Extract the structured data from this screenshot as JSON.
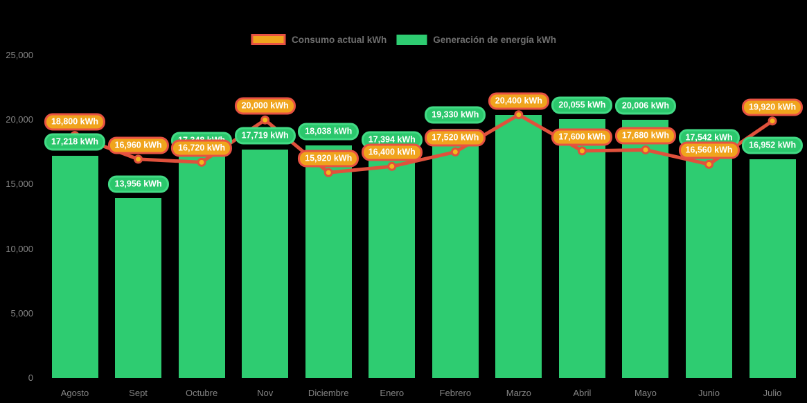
{
  "legend": {
    "items": [
      {
        "label": "Consumo actual kWh",
        "swatch": "consumo"
      },
      {
        "label": "Generación de energía kWh",
        "swatch": "generacion"
      }
    ]
  },
  "colors": {
    "background": "#000000",
    "bar_green": "#2ecc71",
    "green_label_fill": "#2bc76c",
    "green_label_border": "#42db85",
    "orange_label_fill": "#f0a41d",
    "orange_label_border": "#e85242",
    "line_red": "#e0513c",
    "marker_gold": "#f3b81d",
    "axis_text": "#858585",
    "legend_text": "#6f6f6f"
  },
  "chart_data": {
    "type": "bar",
    "title": "",
    "xlabel": "",
    "ylabel": "",
    "ylim": [
      0,
      25000
    ],
    "grid": false,
    "legend_position": "top",
    "y_tick_labels": [
      "25,000",
      "20,000",
      "15,000",
      "10,000",
      "5,000",
      "0"
    ],
    "categories": [
      "Agosto",
      "Sept",
      "Octubre",
      "Nov",
      "Diciembre",
      "Enero",
      "Febrero",
      "Marzo",
      "Abril",
      "Mayo",
      "Junio",
      "Julio"
    ],
    "series": [
      {
        "name": "Consumo actual kWh",
        "type": "line",
        "color": "#e0513c",
        "values": [
          18800,
          16960,
          16720,
          20000,
          15920,
          16400,
          17520,
          20400,
          17600,
          17680,
          16560,
          19920
        ],
        "labels": [
          "18,800 kWh",
          "16,960 kWh",
          "16,720 kWh",
          "20,000 kWh",
          "15,920 kWh",
          "16,400 kWh",
          "17,520 kWh",
          "20,400 kWh",
          "17,600 kWh",
          "17,680 kWh",
          "16,560 kWh",
          "19,920 kWh"
        ]
      },
      {
        "name": "Generación de energía kWh",
        "type": "bar",
        "color": "#2ecc71",
        "values": [
          17218,
          13956,
          17348,
          17719,
          18038,
          17394,
          19330,
          20400,
          20055,
          20006,
          17542,
          16952
        ],
        "labels": [
          "17,218 kWh",
          "13,956 kWh",
          "17,348 kWh",
          "17,719 kWh",
          "18,038 kWh",
          "17,394 kWh",
          "19,330 kWh",
          null,
          "20,055 kWh",
          "20,006 kWh",
          "17,542 kWh",
          "16,952 kWh"
        ]
      }
    ]
  }
}
